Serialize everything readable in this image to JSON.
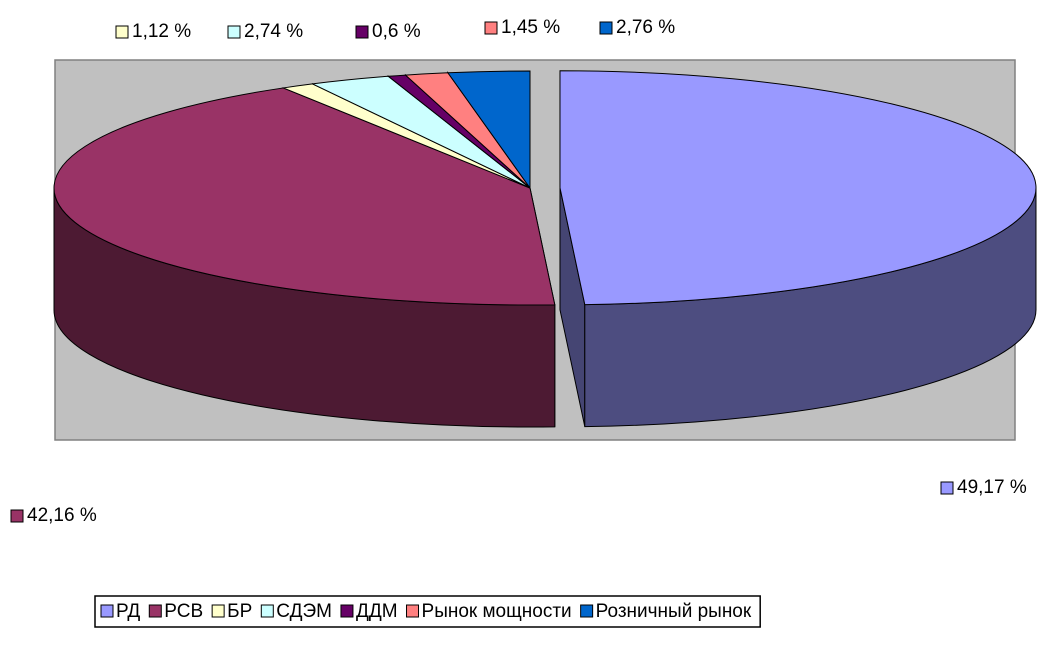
{
  "chart_data": {
    "type": "pie3d",
    "categories": [
      "РД",
      "РСВ",
      "БР",
      "СДЭМ",
      "ДДМ",
      "Рынок мощности",
      "Розничный рынок"
    ],
    "values": [
      49.17,
      42.16,
      1.12,
      2.74,
      0.6,
      1.45,
      2.76
    ],
    "value_labels": [
      "49,17 %",
      "42,16 %",
      "1,12 %",
      "2,74 %",
      "0,6 %",
      "1,45 %",
      "2,76 %"
    ],
    "colors": [
      "#9999ff",
      "#993366",
      "#ffffcc",
      "#ccffff",
      "#660066",
      "#ff8080",
      "#0066cc"
    ],
    "exploded": [
      0
    ],
    "legend": "bottom"
  }
}
